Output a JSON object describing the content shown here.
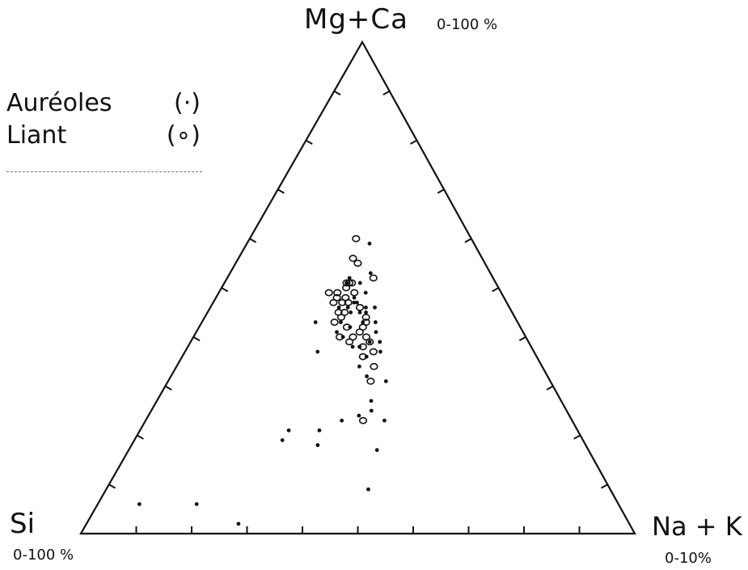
{
  "chart_data": {
    "type": "scatter",
    "subtype": "ternary",
    "apices": {
      "top": {
        "label": "Mg+Ca",
        "range": "0-100 %"
      },
      "left": {
        "label": "Si",
        "range": "0-100 %"
      },
      "right": {
        "label": "Na + K",
        "range": "0-10%"
      }
    },
    "ticks_per_side": 10,
    "legend": {
      "placement": "top-left",
      "items": [
        {
          "name": "Auréoles",
          "symbol": "(·)"
        },
        {
          "name": "Liant",
          "symbol": "(∘)"
        }
      ]
    },
    "series": [
      {
        "name": "Auréoles",
        "marker": "dot",
        "points": [
          [
            0.46,
            0.52
          ],
          [
            0.5,
            0.51
          ],
          [
            0.54,
            0.53
          ],
          [
            0.46,
            0.46
          ],
          [
            0.49,
            0.47
          ],
          [
            0.44,
            0.43
          ],
          [
            0.45,
            0.4
          ],
          [
            0.48,
            0.48
          ],
          [
            0.36,
            0.43
          ],
          [
            0.38,
            0.37
          ],
          [
            0.43,
            0.41
          ],
          [
            0.47,
            0.42
          ],
          [
            0.48,
            0.38
          ],
          [
            0.5,
            0.45
          ],
          [
            0.52,
            0.46
          ],
          [
            0.52,
            0.45
          ],
          [
            0.55,
            0.41
          ],
          [
            0.56,
            0.39
          ],
          [
            0.56,
            0.37
          ],
          [
            0.53,
            0.39
          ],
          [
            0.52,
            0.36
          ],
          [
            0.5,
            0.38
          ],
          [
            0.51,
            0.43
          ],
          [
            0.48,
            0.47
          ],
          [
            0.47,
            0.45
          ],
          [
            0.55,
            0.43
          ],
          [
            0.5,
            0.34
          ],
          [
            0.52,
            0.32
          ],
          [
            0.57,
            0.31
          ],
          [
            0.5,
            0.24
          ],
          [
            0.46,
            0.23
          ],
          [
            0.53,
            0.27
          ],
          [
            0.56,
            0.23
          ],
          [
            0.54,
            0.17
          ],
          [
            0.41,
            0.21
          ],
          [
            0.33,
            0.19
          ],
          [
            0.34,
            0.21
          ],
          [
            0.41,
            0.18
          ],
          [
            0.53,
            0.25
          ],
          [
            0.52,
            0.09
          ],
          [
            0.08,
            0.06
          ],
          [
            0.19,
            0.06
          ],
          [
            0.28,
            0.02
          ],
          [
            0.54,
            0.59
          ],
          [
            0.52,
            0.49
          ],
          [
            0.45,
            0.51
          ],
          [
            0.43,
            0.46
          ],
          [
            0.55,
            0.46
          ]
        ]
      },
      {
        "name": "Liant",
        "marker": "ring",
        "points": [
          [
            0.48,
            0.6
          ],
          [
            0.47,
            0.56
          ],
          [
            0.49,
            0.55
          ],
          [
            0.39,
            0.49
          ],
          [
            0.42,
            0.49
          ],
          [
            0.45,
            0.5
          ],
          [
            0.46,
            0.51
          ],
          [
            0.47,
            0.51
          ],
          [
            0.44,
            0.47
          ],
          [
            0.43,
            0.45
          ],
          [
            0.46,
            0.47
          ],
          [
            0.45,
            0.48
          ],
          [
            0.42,
            0.48
          ],
          [
            0.41,
            0.47
          ],
          [
            0.44,
            0.44
          ],
          [
            0.42,
            0.43
          ],
          [
            0.46,
            0.42
          ],
          [
            0.5,
            0.46
          ],
          [
            0.52,
            0.43
          ],
          [
            0.51,
            0.42
          ],
          [
            0.5,
            0.41
          ],
          [
            0.52,
            0.44
          ],
          [
            0.48,
            0.4
          ],
          [
            0.47,
            0.39
          ],
          [
            0.51,
            0.38
          ],
          [
            0.53,
            0.39
          ],
          [
            0.54,
            0.37
          ],
          [
            0.45,
            0.51
          ],
          [
            0.48,
            0.49
          ],
          [
            0.45,
            0.45
          ],
          [
            0.44,
            0.4
          ],
          [
            0.55,
            0.52
          ],
          [
            0.52,
            0.4
          ],
          [
            0.53,
            0.31
          ],
          [
            0.51,
            0.23
          ],
          [
            0.54,
            0.34
          ],
          [
            0.51,
            0.36
          ]
        ]
      }
    ]
  }
}
